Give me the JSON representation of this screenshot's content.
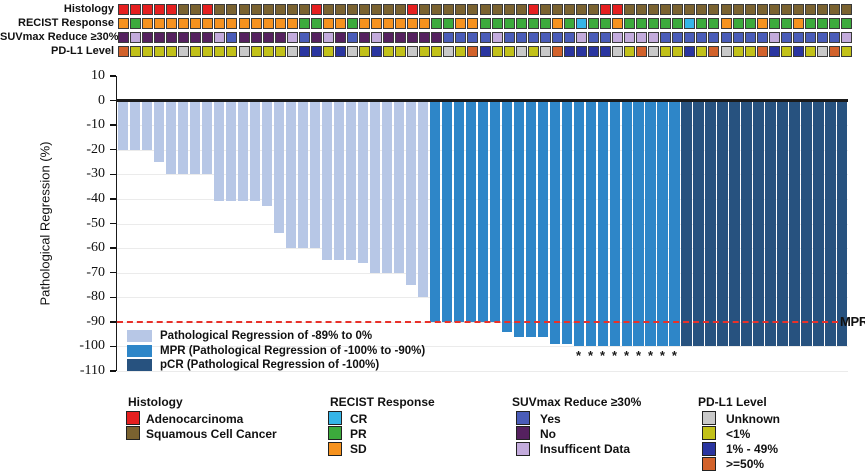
{
  "tracks": {
    "rows": [
      {
        "label": "Histology",
        "key": "histology"
      },
      {
        "label": "RECIST Response",
        "key": "recist"
      },
      {
        "label": "SUVmax Reduce ≥30%",
        "key": "suvmax"
      },
      {
        "label": "PD-L1 Level",
        "key": "pdl1"
      }
    ],
    "histology": [
      "A",
      "A",
      "A",
      "A",
      "A",
      "S",
      "S",
      "A",
      "S",
      "S",
      "S",
      "S",
      "S",
      "S",
      "S",
      "S",
      "A",
      "S",
      "S",
      "S",
      "S",
      "S",
      "S",
      "S",
      "A",
      "S",
      "S",
      "S",
      "S",
      "S",
      "S",
      "S",
      "S",
      "S",
      "A",
      "S",
      "S",
      "S",
      "S",
      "S",
      "A",
      "A",
      "S",
      "S",
      "S",
      "S",
      "S",
      "S",
      "S",
      "S",
      "S",
      "S",
      "S",
      "S",
      "S",
      "S",
      "S",
      "S",
      "S",
      "S",
      "S"
    ],
    "recist": [
      "SD",
      "PR",
      "SD",
      "SD",
      "SD",
      "SD",
      "SD",
      "SD",
      "SD",
      "SD",
      "SD",
      "SD",
      "SD",
      "SD",
      "SD",
      "PR",
      "PR",
      "SD",
      "SD",
      "PR",
      "SD",
      "SD",
      "SD",
      "SD",
      "SD",
      "SD",
      "PR",
      "PR",
      "SD",
      "SD",
      "PR",
      "PR",
      "PR",
      "PR",
      "PR",
      "PR",
      "SD",
      "PR",
      "CR",
      "PR",
      "PR",
      "SD",
      "PR",
      "PR",
      "PR",
      "PR",
      "PR",
      "CR",
      "PR",
      "PR",
      "SD",
      "PR",
      "PR",
      "SD",
      "PR",
      "PR",
      "SD",
      "PR",
      "PR",
      "PR",
      "PR"
    ],
    "suvmax": [
      "N",
      "I",
      "N",
      "N",
      "N",
      "N",
      "N",
      "N",
      "I",
      "Y",
      "N",
      "N",
      "N",
      "N",
      "I",
      "Y",
      "N",
      "I",
      "N",
      "Y",
      "N",
      "I",
      "N",
      "N",
      "N",
      "N",
      "N",
      "Y",
      "Y",
      "Y",
      "Y",
      "I",
      "Y",
      "Y",
      "Y",
      "Y",
      "Y",
      "Y",
      "I",
      "Y",
      "Y",
      "I",
      "I",
      "I",
      "I",
      "Y",
      "Y",
      "Y",
      "Y",
      "Y",
      "Y",
      "Y",
      "Y",
      "Y",
      "I",
      "Y",
      "Y",
      "Y",
      "Y",
      "Y",
      "I"
    ],
    "pdl1": [
      "H",
      "L",
      "L",
      "L",
      "L",
      "U",
      "L",
      "L",
      "L",
      "L",
      "U",
      "L",
      "L",
      "L",
      "U",
      "M",
      "M",
      "L",
      "M",
      "U",
      "L",
      "M",
      "L",
      "L",
      "U",
      "L",
      "L",
      "U",
      "L",
      "H",
      "M",
      "L",
      "L",
      "U",
      "L",
      "U",
      "H",
      "M",
      "M",
      "M",
      "M",
      "U",
      "L",
      "H",
      "U",
      "L",
      "L",
      "M",
      "L",
      "H",
      "U",
      "L",
      "L",
      "H",
      "M",
      "L",
      "M",
      "L",
      "U",
      "H",
      "L"
    ],
    "color_maps": {
      "histology": {
        "A": "#e51f1f",
        "S": "#7a6230"
      },
      "recist": {
        "CR": "#35b5e8",
        "PR": "#3caa3c",
        "SD": "#f6921e"
      },
      "suvmax": {
        "Y": "#4a5cb8",
        "N": "#55215f",
        "I": "#c3abdc"
      },
      "pdl1": {
        "U": "#c9c9c9",
        "L": "#c2c119",
        "M": "#2a35a0",
        "H": "#d2622b"
      }
    }
  },
  "chart_data": {
    "type": "bar",
    "title": "",
    "ylabel": "Pathological Regression (%)",
    "ylim": [
      -110,
      10
    ],
    "yticks": [
      10,
      0,
      -10,
      -20,
      -30,
      -40,
      -50,
      -60,
      -70,
      -80,
      -90,
      -100,
      -110
    ],
    "grid": true,
    "n_patients": 61,
    "values": [
      -20,
      -20,
      -20,
      -25,
      -30,
      -30,
      -30,
      -30,
      -41,
      -41,
      -41,
      -41,
      -43,
      -54,
      -60,
      -60,
      -60,
      -65,
      -65,
      -65,
      -66,
      -70,
      -70,
      -70,
      -75,
      -80,
      -90,
      -90,
      -90,
      -90,
      -90,
      -90,
      -94,
      -96,
      -96,
      -96,
      -99,
      -99,
      -100,
      -100,
      -100,
      -100,
      -100,
      -100,
      -100,
      -100,
      -100,
      -100,
      -100,
      -100,
      -100,
      -100,
      -100,
      -100,
      -100,
      -100,
      -100,
      -100,
      -100,
      -100,
      -100
    ],
    "bar_groups": [
      "light",
      "light",
      "light",
      "light",
      "light",
      "light",
      "light",
      "light",
      "light",
      "light",
      "light",
      "light",
      "light",
      "light",
      "light",
      "light",
      "light",
      "light",
      "light",
      "light",
      "light",
      "light",
      "light",
      "light",
      "light",
      "light",
      "mpr",
      "mpr",
      "mpr",
      "mpr",
      "mpr",
      "mpr",
      "mpr",
      "mpr",
      "mpr",
      "mpr",
      "mpr",
      "mpr",
      "mpr",
      "mpr",
      "mpr",
      "mpr",
      "mpr",
      "mpr",
      "mpr",
      "mpr",
      "mpr",
      "pcr",
      "pcr",
      "pcr",
      "pcr",
      "pcr",
      "pcr",
      "pcr",
      "pcr",
      "pcr",
      "pcr",
      "pcr",
      "pcr",
      "pcr",
      "pcr"
    ],
    "bar_colors": {
      "light": "#b7c7e6",
      "mpr": "#2e86c8",
      "pcr": "#27527f"
    },
    "asterisk_bars": [
      39,
      40,
      41,
      42,
      43,
      44,
      45,
      46,
      47
    ],
    "asterisk_symbol": "*",
    "threshold_line": {
      "value": -90,
      "label": "MPR",
      "color": "#e8312a",
      "style": "dashed"
    },
    "legend": [
      {
        "color": "#b7c7e6",
        "label": "Pathological Regression of -89% to 0%"
      },
      {
        "color": "#2e86c8",
        "label": "MPR (Pathological Regression of -100% to -90%)"
      },
      {
        "color": "#27527f",
        "label": "pCR (Pathological Regression of -100%)"
      }
    ],
    "legend_position": "lower left inside plot"
  },
  "bottom_legend": {
    "groups": [
      {
        "title": "Histology",
        "items": [
          {
            "label": "Adenocarcinoma",
            "color": "#e51f1f"
          },
          {
            "label": "Squamous Cell Cancer",
            "color": "#7a6230"
          }
        ]
      },
      {
        "title": "RECIST Response",
        "items": [
          {
            "label": "CR",
            "color": "#35b5e8"
          },
          {
            "label": "PR",
            "color": "#3caa3c"
          },
          {
            "label": "SD",
            "color": "#f6921e"
          }
        ]
      },
      {
        "title": "SUVmax Reduce ≥30%",
        "items": [
          {
            "label": "Yes",
            "color": "#4a5cb8"
          },
          {
            "label": "No",
            "color": "#55215f"
          },
          {
            "label": "Insufficent Data",
            "color": "#c3abdc"
          }
        ]
      },
      {
        "title": "PD-L1 Level",
        "items": [
          {
            "label": "Unknown",
            "color": "#c9c9c9"
          },
          {
            "label": "<1%",
            "color": "#c2c119"
          },
          {
            "label": "1% - 49%",
            "color": "#2a35a0"
          },
          {
            "label": ">=50%",
            "color": "#d2622b"
          }
        ]
      }
    ]
  }
}
